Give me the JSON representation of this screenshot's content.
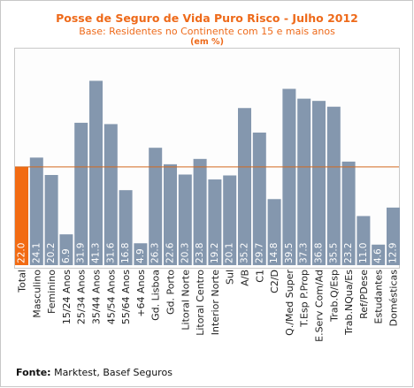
{
  "title": "Posse de Seguro de Vida Puro Risco - Julho 2012",
  "subtitle": "Base: Residentes no Continente com 15 e mais anos",
  "unit": "(em %)",
  "footer": {
    "label": "Fonte:",
    "text": "Marktest, Basef Seguros"
  },
  "colors": {
    "highlight": "#f26b13",
    "bars": "#8497ae",
    "reference_line": "#d2691e",
    "text": "#ee6a1a"
  },
  "chart_data": {
    "type": "bar",
    "title": "Posse de Seguro de Vida Puro Risco - Julho 2012",
    "subtitle": "Base: Residentes no Continente com 15 e mais anos",
    "ylabel": "",
    "ylim": [
      0,
      45
    ],
    "grid": false,
    "legend": "none",
    "reference_line": 22.0,
    "highlight_index": 0,
    "categories": [
      "Total",
      "Masculino",
      "Feminino",
      "15/24 Anos",
      "25/34 Anos",
      "35/44 Anos",
      "45/54 Anos",
      "55/64 Anos",
      "+64 Anos",
      "Gd. Lisboa",
      "Gd. Porto",
      "Litoral Norte",
      "Litoral Centro",
      "Interior Norte",
      "Sul",
      "A/B",
      "C1",
      "C2/D",
      "Q./Med Super",
      "T.Esp P.Prop",
      "E.Serv Com/Ad",
      "Trab.Q/Esp",
      "Trab.NQua/Es",
      "Ref/PDese",
      "Estudantes",
      "Domésticas"
    ],
    "values": [
      22.0,
      24.1,
      20.2,
      6.9,
      31.9,
      41.3,
      31.6,
      16.8,
      4.9,
      26.3,
      22.6,
      20.3,
      23.8,
      19.2,
      20.1,
      35.2,
      29.7,
      14.8,
      39.5,
      37.3,
      36.8,
      35.5,
      23.2,
      11.0,
      4.6,
      12.9
    ],
    "value_labels": [
      "22.0",
      "24.1",
      "20.2",
      "6.9",
      "31.9",
      "41.3",
      "31.6",
      "16.8",
      "4.9",
      "26.3",
      "22.6",
      "20.3",
      "23.8",
      "19.2",
      "20.1",
      "35.2",
      "29.7",
      "14.8",
      "39.5",
      "37.3",
      "36.8",
      "35.5",
      "23.2",
      "11.0",
      "4.6",
      "12.9"
    ]
  }
}
